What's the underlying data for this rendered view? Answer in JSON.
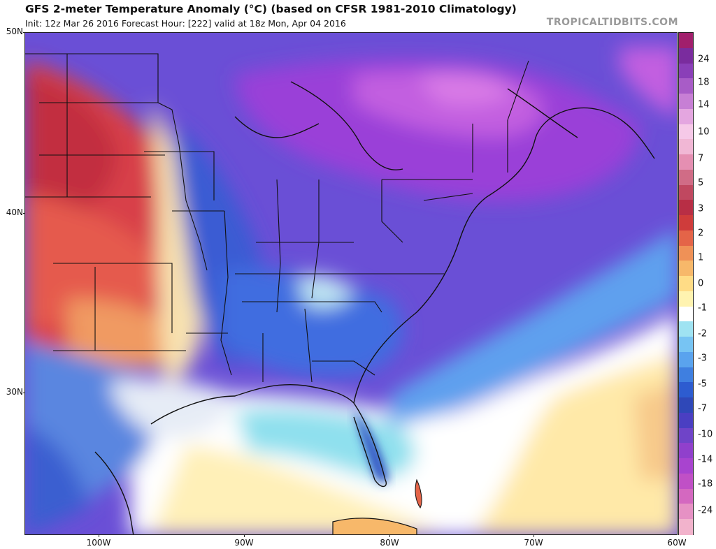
{
  "header": {
    "title": "GFS 2-meter Temperature Anomaly (°C) (based on CFSR 1981-2010 Climatology)",
    "subtitle": "Init: 12z Mar 26 2016   Forecast Hour: [222]   valid at 18z Mon, Apr 04 2016",
    "brand": "TROPICALTIDBITS.COM"
  },
  "map": {
    "lat_labels": [
      "50N",
      "40N",
      "30N"
    ],
    "lon_labels": [
      "100W",
      "90W",
      "80W",
      "70W",
      "60W"
    ]
  },
  "colorbar": {
    "labels": [
      "24",
      "18",
      "14",
      "10",
      "7",
      "5",
      "3",
      "2",
      "1",
      "0",
      "-1",
      "-2",
      "-3",
      "-5",
      "-7",
      "-10",
      "-14",
      "-18",
      "-24"
    ],
    "colors": [
      "#f2b3cc",
      "#e691c4",
      "#d468c0",
      "#c050c6",
      "#a844cf",
      "#9040cc",
      "#6f44c8",
      "#4a3fc2",
      "#2f48b8",
      "#2d5cd0",
      "#3f7fe0",
      "#5aa3ee",
      "#77c4f3",
      "#9fe3f2",
      "#ffffff",
      "#fff3b0",
      "#ffdc86",
      "#f7b86a",
      "#ef9157",
      "#e46448",
      "#cf3c3b",
      "#b82e45",
      "#c04860",
      "#d06c86",
      "#e58fb2",
      "#f1b7d5",
      "#f6c9e8",
      "#e4a6e0",
      "#c77fd5",
      "#a85cc7",
      "#8a3fb8",
      "#7a2c9e",
      "#a11f6c"
    ]
  }
}
